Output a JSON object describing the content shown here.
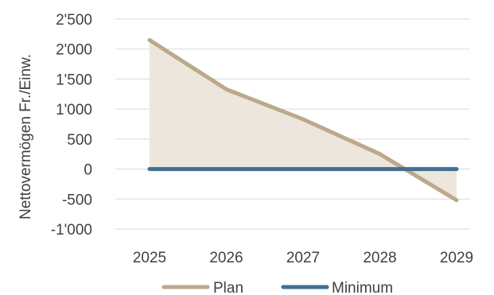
{
  "chart_data": {
    "type": "line",
    "title": "",
    "xlabel": "",
    "ylabel": "Nettovermögen  Fr./Einw.",
    "x": [
      "2025",
      "2026",
      "2027",
      "2028",
      "2029"
    ],
    "ylim": [
      -1000,
      2500
    ],
    "y_ticks": [
      -1000,
      -500,
      0,
      500,
      1000,
      1500,
      2000,
      2500
    ],
    "y_tick_labels": [
      "-1'000",
      "-500",
      "0",
      "500",
      "1'000",
      "1'500",
      "2'000",
      "2'500"
    ],
    "grid": true,
    "legend_position": "bottom",
    "series": [
      {
        "name": "Plan",
        "values": [
          2150,
          1330,
          830,
          250,
          -520
        ],
        "color": "#bca98a",
        "fill": "#ede6dc",
        "style": "line-with-area-to-zero"
      },
      {
        "name": "Minimum",
        "values": [
          0,
          0,
          0,
          0,
          0
        ],
        "color": "#426f92",
        "style": "line"
      }
    ]
  }
}
